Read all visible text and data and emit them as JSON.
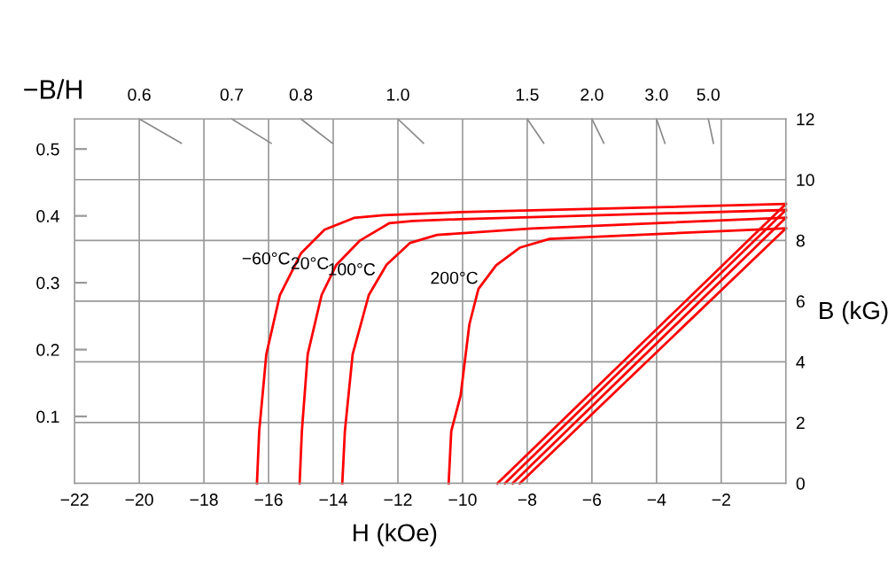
{
  "chart_data": {
    "type": "line",
    "xlabel": "H (kOe)",
    "ylabel": "B (kG)",
    "y2label": "−B/H",
    "series": [
      {
        "name": "−60°C",
        "color": "#ff0000",
        "x": [
          -16.36,
          -16.29,
          -16.07,
          -15.65,
          -15.0,
          -14.27,
          -13.36,
          -12.44,
          -10.06,
          0
        ],
        "values": [
          0,
          1.72,
          4.25,
          6.2,
          7.57,
          8.35,
          8.74,
          8.83,
          8.93,
          9.2
        ]
      },
      {
        "name": "20°C",
        "color": "#ff0000",
        "x": [
          -15.04,
          -14.97,
          -14.79,
          -14.36,
          -13.9,
          -13.18,
          -12.26,
          -11.53,
          -10.06,
          0
        ],
        "values": [
          0,
          1.72,
          4.25,
          6.2,
          7.2,
          7.99,
          8.57,
          8.64,
          8.7,
          9.0
        ]
      },
      {
        "name": "100°C",
        "color": "#ff0000",
        "x": [
          -13.72,
          -13.64,
          -13.4,
          -12.9,
          -12.35,
          -11.62,
          -10.79,
          -7.86,
          0
        ],
        "values": [
          0,
          1.72,
          4.25,
          6.2,
          7.2,
          7.92,
          8.18,
          8.39,
          8.75
        ]
      },
      {
        "name": "200°C",
        "color": "#ff0000",
        "x": [
          -10.43,
          -10.35,
          -10.06,
          -9.79,
          -9.51,
          -8.96,
          -8.23,
          -7.31,
          0
        ],
        "values": [
          0,
          1.72,
          2.89,
          5.23,
          6.4,
          7.18,
          7.76,
          8.05,
          8.4
        ]
      },
      {
        "name": "0.6",
        "color": "#888888",
        "x": [
          -20,
          -18.7
        ],
        "values": [
          12,
          11.2
        ]
      },
      {
        "name": "0.7",
        "color": "#888888",
        "x": [
          -17.14,
          -15.92
        ],
        "values": [
          12,
          11.2
        ]
      },
      {
        "name": "0.8",
        "color": "#888888",
        "x": [
          -15,
          -14.03
        ],
        "values": [
          12,
          11.2
        ]
      },
      {
        "name": "1.0",
        "color": "#888888",
        "x": [
          -12,
          -11.21
        ],
        "values": [
          12,
          11.2
        ]
      },
      {
        "name": "1.5",
        "color": "#888888",
        "x": [
          -8,
          -7.49
        ],
        "values": [
          12,
          11.2
        ]
      },
      {
        "name": "2.0",
        "color": "#888888",
        "x": [
          -6,
          -5.63
        ],
        "values": [
          12,
          11.2
        ]
      },
      {
        "name": "3.0",
        "color": "#888888",
        "x": [
          -4,
          -3.74
        ],
        "values": [
          12,
          11.2
        ]
      },
      {
        "name": "5.0",
        "color": "#888888",
        "x": [
          -2.4,
          -2.24
        ],
        "values": [
          12,
          11.2
        ]
      },
      {
        "color": "#ff0000",
        "x": [
          -8.92,
          0
        ],
        "values": [
          0,
          9.2
        ]
      },
      {
        "color": "#ff0000",
        "x": [
          -8.69,
          0
        ],
        "values": [
          0,
          9.0
        ]
      },
      {
        "color": "#ff0000",
        "x": [
          -8.45,
          0
        ],
        "values": [
          0,
          8.75
        ]
      },
      {
        "color": "#ff0000",
        "x": [
          -8.23,
          0
        ],
        "values": [
          0,
          8.4
        ]
      }
    ],
    "xlim": [
      -22,
      0
    ],
    "xticks": [
      -22,
      -20,
      -18,
      -16,
      -14,
      -12,
      -10,
      -8,
      -6,
      -4,
      -2
    ],
    "ylim": [
      0,
      12
    ],
    "yticks": [
      0,
      2,
      4,
      6,
      8,
      10,
      12
    ],
    "y2lim": [
      0,
      0.545
    ],
    "y2ticks": [
      0.1,
      0.2,
      0.3,
      0.4,
      0.5
    ],
    "grid": true
  }
}
